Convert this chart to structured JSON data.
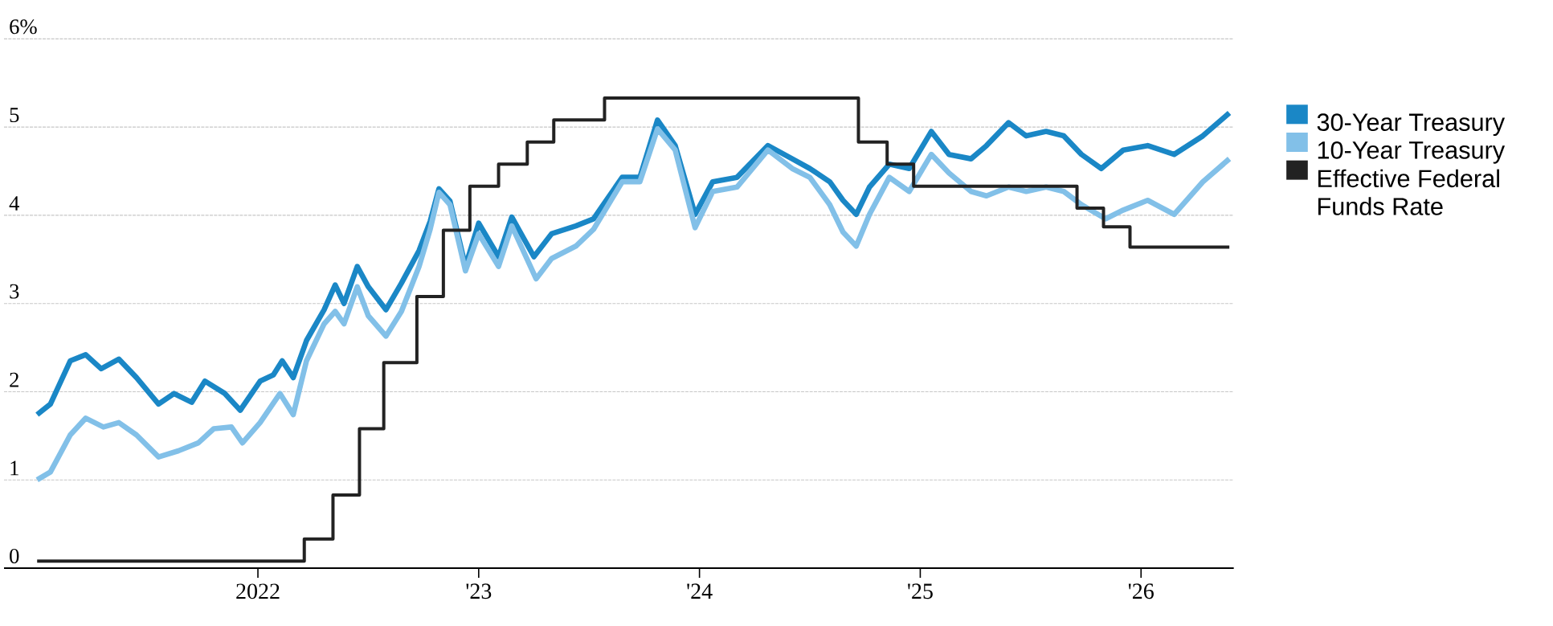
{
  "chart_data": {
    "type": "line",
    "xlim": [
      2020.85,
      2026.42
    ],
    "ylim": [
      0,
      6
    ],
    "xticks": [
      2022,
      {
        "value": 2023,
        "label": "'23"
      },
      {
        "value": 2024,
        "label": "'24"
      },
      {
        "value": 2025,
        "label": "'25"
      },
      {
        "value": 2026,
        "label": "'26"
      }
    ],
    "yticks": [
      0,
      1,
      2,
      3,
      4,
      5,
      {
        "value": 6,
        "label": "6%"
      }
    ],
    "grid": "y",
    "legend": "right",
    "series": [
      {
        "name": "30-Year Treasury",
        "color": "#1a87c6",
        "x": [
          2021.0,
          2021.06,
          2021.15,
          2021.22,
          2021.29,
          2021.37,
          2021.45,
          2021.55,
          2021.62,
          2021.7,
          2021.76,
          2021.85,
          2021.92,
          2022.01,
          2022.07,
          2022.11,
          2022.16,
          2022.22,
          2022.3,
          2022.35,
          2022.39,
          2022.45,
          2022.5,
          2022.58,
          2022.65,
          2022.73,
          2022.78,
          2022.82,
          2022.87,
          2022.94,
          2023.0,
          2023.09,
          2023.15,
          2023.25,
          2023.33,
          2023.44,
          2023.52,
          2023.65,
          2023.73,
          2023.81,
          2023.89,
          2023.98,
          2024.06,
          2024.17,
          2024.31,
          2024.42,
          2024.5,
          2024.59,
          2024.65,
          2024.71,
          2024.77,
          2024.86,
          2024.95,
          2025.05,
          2025.13,
          2025.23,
          2025.3,
          2025.4,
          2025.48,
          2025.57,
          2025.65,
          2025.73,
          2025.82,
          2025.92,
          2026.03,
          2026.15,
          2026.28,
          2026.4
        ],
        "values": [
          1.74,
          1.86,
          2.35,
          2.42,
          2.26,
          2.37,
          2.16,
          1.86,
          1.98,
          1.88,
          2.12,
          1.98,
          1.79,
          2.12,
          2.19,
          2.35,
          2.16,
          2.58,
          2.93,
          3.21,
          3.0,
          3.42,
          3.19,
          2.93,
          3.23,
          3.6,
          3.93,
          4.3,
          4.16,
          3.42,
          3.91,
          3.53,
          3.98,
          3.53,
          3.79,
          3.88,
          3.96,
          4.43,
          4.43,
          5.08,
          4.79,
          4.01,
          4.38,
          4.43,
          4.79,
          4.64,
          4.53,
          4.38,
          4.17,
          4.01,
          4.32,
          4.58,
          4.53,
          4.95,
          4.69,
          4.64,
          4.79,
          5.05,
          4.9,
          4.95,
          4.9,
          4.69,
          4.53,
          4.74,
          4.79,
          4.69,
          4.9,
          5.16
        ]
      },
      {
        "name": "10-Year Treasury",
        "color": "#82c0e8",
        "x": [
          2021.0,
          2021.06,
          2021.15,
          2021.22,
          2021.3,
          2021.37,
          2021.45,
          2021.55,
          2021.64,
          2021.73,
          2021.8,
          2021.88,
          2021.93,
          2022.01,
          2022.1,
          2022.16,
          2022.22,
          2022.3,
          2022.35,
          2022.39,
          2022.45,
          2022.5,
          2022.58,
          2022.65,
          2022.73,
          2022.78,
          2022.82,
          2022.87,
          2022.94,
          2023.0,
          2023.09,
          2023.15,
          2023.26,
          2023.33,
          2023.44,
          2023.52,
          2023.65,
          2023.73,
          2023.81,
          2023.89,
          2023.98,
          2024.06,
          2024.17,
          2024.31,
          2024.42,
          2024.5,
          2024.59,
          2024.65,
          2024.71,
          2024.77,
          2024.86,
          2024.95,
          2025.05,
          2025.13,
          2025.23,
          2025.3,
          2025.4,
          2025.48,
          2025.57,
          2025.65,
          2025.73,
          2025.84,
          2025.92,
          2026.03,
          2026.15,
          2026.28,
          2026.4
        ],
        "values": [
          1.0,
          1.09,
          1.51,
          1.7,
          1.6,
          1.65,
          1.51,
          1.26,
          1.33,
          1.42,
          1.58,
          1.6,
          1.42,
          1.65,
          1.98,
          1.74,
          2.35,
          2.77,
          2.91,
          2.77,
          3.19,
          2.86,
          2.63,
          2.91,
          3.42,
          3.84,
          4.26,
          4.12,
          3.37,
          3.79,
          3.42,
          3.88,
          3.28,
          3.51,
          3.65,
          3.84,
          4.38,
          4.38,
          4.98,
          4.74,
          3.86,
          4.27,
          4.32,
          4.74,
          4.53,
          4.43,
          4.12,
          3.81,
          3.65,
          4.01,
          4.43,
          4.27,
          4.69,
          4.48,
          4.27,
          4.22,
          4.32,
          4.27,
          4.32,
          4.27,
          4.12,
          3.96,
          4.06,
          4.17,
          4.01,
          4.38,
          4.64
        ]
      },
      {
        "name": "Effective Federal Funds Rate",
        "color": "#222222",
        "type": "step",
        "x": [
          2021.0,
          2022.21,
          2022.34,
          2022.46,
          2022.57,
          2022.72,
          2022.84,
          2022.96,
          2023.09,
          2023.22,
          2023.34,
          2023.57,
          2024.72,
          2024.85,
          2024.97,
          2025.71,
          2025.83,
          2025.95,
          2026.4
        ],
        "values": [
          0.08,
          0.33,
          0.83,
          1.58,
          2.33,
          3.08,
          3.83,
          4.33,
          4.58,
          4.83,
          5.08,
          5.33,
          4.83,
          4.58,
          4.33,
          4.08,
          3.87,
          3.64,
          3.64
        ]
      }
    ]
  }
}
